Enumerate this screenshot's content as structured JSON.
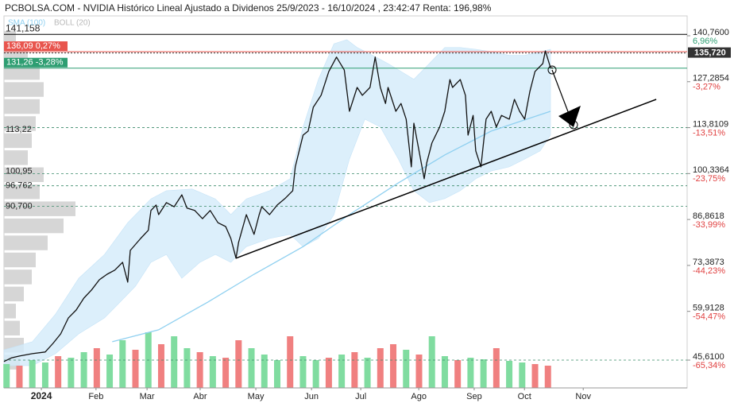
{
  "chart_data": {
    "type": "line",
    "title": "PCBOLSA.COM - NVIDIA Histórico Lineal Ajustado a Dividenos 25/9/2023 - 16/10/2024 , 23:42:47 Renta: 196,98%",
    "legend": "top-left",
    "grid": false,
    "xlim": [
      -11,
      254
    ],
    "ylim": [
      37.45,
      146.59
    ],
    "xticks": [
      {
        "value": 3.5,
        "label": "2024"
      },
      {
        "value": 24.7,
        "label": "Feb"
      },
      {
        "value": 44.5,
        "label": "Mar"
      },
      {
        "value": 65.1,
        "label": "Abr"
      },
      {
        "value": 86.7,
        "label": "May"
      },
      {
        "value": 108.3,
        "label": "Jun"
      },
      {
        "value": 127.4,
        "label": "Jul"
      },
      {
        "value": 149.9,
        "label": "Ago"
      },
      {
        "value": 171.4,
        "label": "Sep"
      },
      {
        "value": 190.9,
        "label": "Oct"
      },
      {
        "value": 213.7,
        "label": "Nov"
      }
    ],
    "yticks": [
      {
        "value": 140.76,
        "label": "140,7600"
      },
      {
        "value": 127.2854,
        "label": "127,2854"
      },
      {
        "value": 113.8109,
        "label": "113,8109"
      },
      {
        "value": 100.3364,
        "label": "100,3364"
      },
      {
        "value": 86.8618,
        "label": "86,8618"
      },
      {
        "value": 73.3873,
        "label": "73,3873"
      },
      {
        "value": 59.9128,
        "label": "59,9128"
      },
      {
        "value": 45.61,
        "label": "45,6100"
      }
    ],
    "ytick_pct": [
      "6,96%",
      "-3,27%",
      "-13,51%",
      "-23,75%",
      "-33,99%",
      "-44,23%",
      "-54,47%",
      "-65,34%"
    ],
    "dashed_levels": [
      113.8109,
      100.3364,
      96.762,
      90.7,
      45.61
    ],
    "left_levels": [
      {
        "value": 141.158,
        "label": "141,158"
      },
      {
        "value": 113.22,
        "label": "113,22"
      },
      {
        "value": 100.95,
        "label": "100,95"
      },
      {
        "value": 96.762,
        "label": "96,762"
      },
      {
        "value": 90.7,
        "label": "90,700"
      }
    ],
    "price_markers": [
      {
        "value": 136.09,
        "label": "136,09 0,27%",
        "color": "#e8554e"
      },
      {
        "value": 131.26,
        "label": "131,26 -3,28%",
        "color": "#2e9e72"
      }
    ],
    "last_price": {
      "value": 135.72,
      "label": "135,720"
    },
    "price": {
      "color": "#111111",
      "x": [
        -11,
        -8,
        -5,
        0,
        5,
        8,
        11,
        14,
        17,
        20,
        23,
        26,
        29,
        32,
        35,
        37,
        38,
        42,
        45,
        46,
        48,
        49,
        52,
        55,
        58,
        60,
        63,
        66,
        69,
        72,
        75,
        77,
        79,
        80,
        83,
        86,
        88,
        89,
        92,
        95,
        98,
        101,
        102,
        105,
        107,
        109,
        112,
        115,
        118,
        121,
        123,
        126,
        128,
        131,
        133,
        135,
        137,
        138,
        141,
        143,
        145,
        147,
        148,
        150,
        152,
        153,
        155,
        158,
        160,
        162,
        163,
        166,
        168,
        169,
        171,
        172,
        174,
        176,
        178,
        180,
        182,
        185,
        187,
        189,
        191,
        193,
        195,
        198,
        199,
        201,
        202
      ],
      "values": [
        45.2,
        46.3,
        46.8,
        47.5,
        48.0,
        50.5,
        53.3,
        58.0,
        60.3,
        63.8,
        66.2,
        69.2,
        70.8,
        72.0,
        74.3,
        68.5,
        77.8,
        81.3,
        83.7,
        89.5,
        91.1,
        88.3,
        91.8,
        90.6,
        94.1,
        90.2,
        89.5,
        87.1,
        89.5,
        85.9,
        84.8,
        81.3,
        75.5,
        80.1,
        88.3,
        82.5,
        88.3,
        90.6,
        88.3,
        91.1,
        93.0,
        95.3,
        102.3,
        111.6,
        112.8,
        119.8,
        123.3,
        130.3,
        134.5,
        130.7,
        118.6,
        125.6,
        123.3,
        125.6,
        134.5,
        125.6,
        120.9,
        125.6,
        118.6,
        120.9,
        116.3,
        102.3,
        115.1,
        107.0,
        98.8,
        103.5,
        109.3,
        114.0,
        118.6,
        127.9,
        125.6,
        127.9,
        123.3,
        111.6,
        117.4,
        107.0,
        102.3,
        116.3,
        118.6,
        114.0,
        117.4,
        116.3,
        122.1,
        118.6,
        116.3,
        124.4,
        130.3,
        132.6,
        136.3,
        131.4,
        131.3
      ]
    },
    "series": [
      {
        "name": "SMA (100)",
        "color": "#8fd0f0",
        "x": [
          31,
          49,
          68,
          86,
          105,
          123,
          142,
          160,
          178,
          201
        ],
        "values": [
          51.0,
          54.5,
          62.6,
          70.8,
          78.9,
          88.3,
          97.6,
          105.8,
          112.8,
          118.6
        ]
      }
    ],
    "boll": {
      "name": "BOLL (20)",
      "color": "#b9b9b9",
      "fill": "#d3ebfa",
      "upper": {
        "x": [
          -11,
          0,
          9,
          18,
          28,
          37,
          46,
          52,
          62,
          71,
          77,
          83,
          92,
          100,
          105,
          111,
          117,
          122,
          126,
          132,
          138,
          148,
          154,
          160,
          166,
          172,
          178,
          185,
          191,
          197,
          201
        ],
        "values": [
          48.6,
          51.0,
          59.1,
          69.6,
          76.6,
          85.9,
          92.9,
          95.3,
          95.8,
          92.9,
          88.3,
          92.9,
          95.3,
          98.8,
          114.0,
          128.0,
          138.4,
          139.6,
          137.3,
          135.0,
          132.6,
          128.0,
          132.6,
          137.3,
          137.3,
          136.8,
          136.1,
          135.0,
          135.0,
          136.1,
          136.8
        ]
      },
      "lower": {
        "x": [
          -11,
          0,
          9,
          18,
          28,
          34,
          40,
          46,
          52,
          58,
          65,
          71,
          77,
          83,
          92,
          100,
          105,
          111,
          117,
          123,
          129,
          135,
          142,
          148,
          154,
          160,
          166,
          172,
          178,
          185,
          191,
          197,
          201
        ],
        "values": [
          44.0,
          44.0,
          47.5,
          53.3,
          58.0,
          62.6,
          67.3,
          74.3,
          76.6,
          69.6,
          74.3,
          76.6,
          74.3,
          78.9,
          81.3,
          82.5,
          78.9,
          81.3,
          88.3,
          104.6,
          116.3,
          114.0,
          104.6,
          95.3,
          91.8,
          93.0,
          95.3,
          98.8,
          101.1,
          102.3,
          104.6,
          107.0,
          111.6
        ]
      }
    },
    "trendline": {
      "color": "#000000",
      "x": [
        79,
        242
      ],
      "values": [
        75.5,
        122.1
      ]
    },
    "volume": {
      "lim": [
        0,
        1000
      ],
      "x": [
        -10,
        -5,
        0,
        5,
        10,
        15,
        20,
        25,
        30,
        35,
        40,
        45,
        50,
        55,
        60,
        65,
        70,
        75,
        80,
        85,
        90,
        95,
        100,
        105,
        110,
        115,
        120,
        125,
        130,
        135,
        140,
        145,
        150,
        155,
        160,
        165,
        170,
        175,
        180,
        185,
        190,
        195,
        200
      ],
      "values": [
        300,
        280,
        350,
        320,
        400,
        380,
        450,
        500,
        420,
        600,
        480,
        700,
        550,
        650,
        500,
        450,
        400,
        380,
        600,
        500,
        420,
        350,
        650,
        400,
        350,
        380,
        420,
        450,
        380,
        500,
        550,
        480,
        420,
        650,
        400,
        350,
        380,
        360,
        500,
        340,
        320,
        300,
        280
      ],
      "colors": [
        "#80dca0",
        "#f08080",
        "#80dca0",
        "#80dca0",
        "#f08080",
        "#80dca0",
        "#80dca0",
        "#f08080",
        "#80dca0",
        "#80dca0",
        "#f08080",
        "#80dca0",
        "#f08080",
        "#80dca0",
        "#80dca0",
        "#f08080",
        "#80dca0",
        "#f08080",
        "#f08080",
        "#80dca0",
        "#80dca0",
        "#80dca0",
        "#f08080",
        "#80dca0",
        "#80dca0",
        "#f08080",
        "#80dca0",
        "#f08080",
        "#80dca0",
        "#f08080",
        "#f08080",
        "#80dca0",
        "#f08080",
        "#80dca0",
        "#80dca0",
        "#f08080",
        "#80dca0",
        "#80dca0",
        "#f08080",
        "#80dca0",
        "#80dca0",
        "#f08080",
        "#f08080"
      ]
    },
    "volume_profile": {
      "lim": [
        0,
        100
      ],
      "color": "#d6d6d6",
      "y": [
        45,
        50,
        55,
        60,
        65,
        70,
        75,
        80,
        85,
        90,
        95,
        100,
        105,
        110,
        115,
        120,
        125,
        130,
        135,
        140
      ],
      "values": [
        20,
        25,
        20,
        15,
        25,
        35,
        40,
        55,
        75,
        90,
        45,
        50,
        30,
        35,
        40,
        45,
        50,
        45,
        30,
        15
      ]
    }
  }
}
